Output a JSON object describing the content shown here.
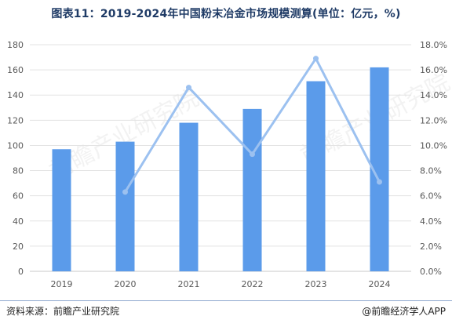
{
  "title": "图表11：2019-2024年中国粉末冶金市场规模测算(单位：亿元，%)",
  "watermark": "前瞻产业研究院",
  "source": "资料来源：前瞻产业研究院",
  "brand": "@前瞻经济学人APP",
  "colors": {
    "bar": "#5b9bea",
    "line": "#9cc1f0",
    "grid": "#e3e3e3",
    "text": "#595959"
  },
  "chart_data": {
    "type": "bar",
    "categories": [
      "2019",
      "2020",
      "2021",
      "2022",
      "2023",
      "2024"
    ],
    "series": [
      {
        "type": "bar",
        "axis": "left",
        "values": [
          97,
          103,
          118,
          129,
          151,
          162
        ]
      },
      {
        "type": "line",
        "axis": "right",
        "values": [
          null,
          6.3,
          14.6,
          9.3,
          16.9,
          7.1
        ]
      }
    ],
    "y_left": {
      "min": 0,
      "max": 180,
      "step": 20,
      "ticks": [
        "0",
        "20",
        "40",
        "60",
        "80",
        "100",
        "120",
        "140",
        "160",
        "180"
      ]
    },
    "y_right": {
      "min": 0,
      "max": 18,
      "step": 2,
      "ticks": [
        "0.0%",
        "2.0%",
        "4.0%",
        "6.0%",
        "8.0%",
        "10.0%",
        "12.0%",
        "14.0%",
        "16.0%",
        "18.0%"
      ]
    },
    "grid": true,
    "legend": "none"
  }
}
